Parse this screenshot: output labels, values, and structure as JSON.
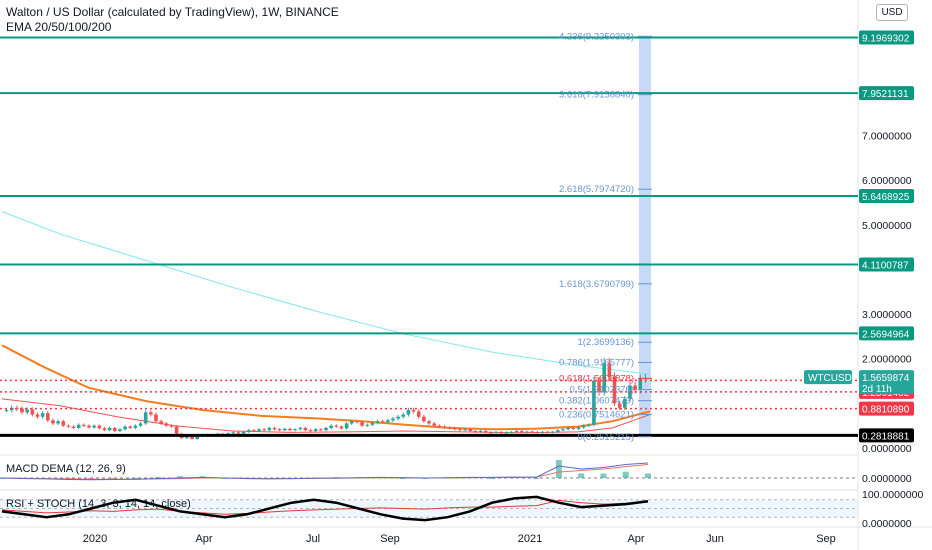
{
  "header": {
    "title": "Walton / US Dollar (calculated by TradingView), 1W, BINANCE",
    "indicator": "EMA 20/50/100/200",
    "currency_button": "USD"
  },
  "panes": {
    "macd_label": "MACD DEMA (12, 26, 9)",
    "rsi_label": "RSI + STOCH (14, 3, 3, 14, 14, close)"
  },
  "chart_data": {
    "type": "candlestick",
    "symbol": "WTCUSD",
    "last_price": "1.5659874",
    "countdown": "2d 11h",
    "x_labels": [
      "2020",
      "Apr",
      "Jul",
      "Sep",
      "2021",
      "Apr",
      "Jun",
      "Sep"
    ],
    "y_ticks": [
      "7.0000000",
      "6.0000000",
      "5.0000000",
      "3.0000000",
      "2.0000000",
      "0.0000000"
    ],
    "ylim": [
      0,
      9.5
    ],
    "horizontal_levels": [
      {
        "label": "9.1969302",
        "value": 9.1969302,
        "style": "solid",
        "color": "#089981"
      },
      {
        "label": "7.9521131",
        "value": 7.9521131,
        "style": "solid",
        "color": "#089981"
      },
      {
        "label": "5.6468925",
        "value": 5.6468925,
        "style": "solid",
        "color": "#089981"
      },
      {
        "label": "4.1100787",
        "value": 4.1100787,
        "style": "solid",
        "color": "#089981"
      },
      {
        "label": "2.5694964",
        "value": 2.5694964,
        "style": "solid",
        "color": "#089981"
      },
      {
        "label": "1.5147152",
        "value": 1.5147152,
        "style": "dotted",
        "color": "#f23645"
      },
      {
        "label": "1.2561462",
        "value": 1.2561462,
        "style": "dotted",
        "color": "#f23645"
      },
      {
        "label": "0.8810890",
        "value": 0.881089,
        "style": "dotted",
        "color": "#f23645"
      },
      {
        "label": "0.2818881",
        "value": 0.2818881,
        "style": "solid",
        "color": "#000000"
      }
    ],
    "fib_levels": [
      {
        "label": "4.236(9.2250303)",
        "value": 9.2250303
      },
      {
        "label": "3.618(7.9158840)",
        "value": 7.915884
      },
      {
        "label": "2.618(5.7974720)",
        "value": 5.797472
      },
      {
        "label": "1.618(3.6790799)",
        "value": 3.6790799
      },
      {
        "label": "1(2.3699136)",
        "value": 2.3699136
      },
      {
        "label": "0.786(1.9165777)",
        "value": 1.9165777
      },
      {
        "label": "0.618(1.5606878)",
        "value": 1.5606878
      },
      {
        "label": "0.5(1.3107376)",
        "value": 1.3107376
      },
      {
        "label": "0.382(1.0607473)",
        "value": 1.0607473
      },
      {
        "label": "0.236(0.7514621)",
        "value": 0.7514621
      },
      {
        "label": "0(0.2515215)",
        "value": 0.2515215
      }
    ],
    "colors": {
      "up": "#26a69a",
      "down": "#ef5350",
      "ema_cyan": "#7fe7f0",
      "ema_orange": "#f57c1f",
      "ema_red": "#ef5350",
      "fib": "#6a94d4",
      "fib_highlight": "#f23645",
      "shade": "#bcd3f5"
    },
    "ema_cyan": [
      [
        0,
        5.3
      ],
      [
        20,
        4.8
      ],
      [
        50,
        4.2
      ],
      [
        80,
        3.6
      ],
      [
        110,
        3.05
      ],
      [
        140,
        2.55
      ],
      [
        170,
        2.15
      ],
      [
        200,
        1.85
      ],
      [
        225,
        1.65
      ]
    ],
    "ema_orange": [
      [
        0,
        2.3
      ],
      [
        15,
        1.8
      ],
      [
        30,
        1.35
      ],
      [
        50,
        1.05
      ],
      [
        70,
        0.85
      ],
      [
        90,
        0.72
      ],
      [
        110,
        0.66
      ],
      [
        125,
        0.6
      ],
      [
        140,
        0.52
      ],
      [
        155,
        0.45
      ],
      [
        170,
        0.42
      ],
      [
        185,
        0.43
      ],
      [
        200,
        0.48
      ],
      [
        212,
        0.6
      ],
      [
        225,
        0.82
      ]
    ],
    "ema_red": [
      [
        0,
        1.1
      ],
      [
        20,
        0.95
      ],
      [
        40,
        0.7
      ],
      [
        60,
        0.5
      ],
      [
        80,
        0.38
      ],
      [
        100,
        0.35
      ],
      [
        120,
        0.36
      ],
      [
        140,
        0.38
      ],
      [
        160,
        0.36
      ],
      [
        180,
        0.34
      ],
      [
        200,
        0.36
      ],
      [
        212,
        0.45
      ],
      [
        225,
        0.75
      ]
    ],
    "candle_closes": [
      0.85,
      0.9,
      0.88,
      0.8,
      0.86,
      0.75,
      0.7,
      0.78,
      0.62,
      0.55,
      0.6,
      0.5,
      0.48,
      0.45,
      0.52,
      0.5,
      0.46,
      0.5,
      0.44,
      0.4,
      0.45,
      0.38,
      0.42,
      0.48,
      0.45,
      0.5,
      0.55,
      0.8,
      0.75,
      0.6,
      0.55,
      0.5,
      0.48,
      0.32,
      0.22,
      0.25,
      0.2,
      0.28,
      0.3,
      0.26,
      0.3,
      0.32,
      0.3,
      0.33,
      0.35,
      0.32,
      0.36,
      0.4,
      0.38,
      0.42,
      0.4,
      0.45,
      0.42,
      0.4,
      0.43,
      0.4,
      0.42,
      0.45,
      0.4,
      0.38,
      0.42,
      0.4,
      0.45,
      0.5,
      0.48,
      0.44,
      0.55,
      0.6,
      0.58,
      0.5,
      0.52,
      0.56,
      0.6,
      0.58,
      0.62,
      0.66,
      0.7,
      0.75,
      0.85,
      0.82,
      0.7,
      0.6,
      0.55,
      0.5,
      0.48,
      0.46,
      0.45,
      0.42,
      0.4,
      0.42,
      0.38,
      0.36,
      0.38,
      0.35,
      0.34,
      0.36,
      0.33,
      0.35,
      0.36,
      0.38,
      0.35,
      0.37,
      0.36,
      0.34,
      0.36,
      0.35,
      0.36,
      0.4,
      0.42,
      0.45,
      0.43,
      0.46,
      0.5,
      0.52,
      1.5,
      1.25,
      1.9,
      1.6,
      1.0,
      0.9,
      1.1,
      1.4,
      1.3,
      1.55,
      1.57
    ],
    "macd_line": [
      0.0,
      -0.02,
      -0.03,
      -0.05,
      -0.06,
      -0.05,
      -0.04,
      -0.02,
      0.0,
      0.02,
      0.0,
      -0.02,
      -0.03,
      -0.02,
      -0.01,
      0.0,
      0.01,
      0.02,
      0.01,
      0.0,
      0.01,
      0.02,
      0.02,
      0.03,
      0.03,
      0.4,
      0.3,
      0.35,
      0.45,
      0.5
    ],
    "macd_signal": [
      0.0,
      -0.01,
      -0.02,
      -0.03,
      -0.04,
      -0.04,
      -0.04,
      -0.03,
      -0.02,
      0.0,
      0.0,
      -0.01,
      -0.02,
      -0.02,
      -0.01,
      -0.01,
      0.0,
      0.01,
      0.01,
      0.0,
      0.0,
      0.01,
      0.02,
      0.02,
      0.03,
      0.2,
      0.25,
      0.3,
      0.38,
      0.45
    ],
    "rsi_ticks": [
      "100.0000000",
      "0.0000000"
    ],
    "rsi_line": [
      45,
      40,
      35,
      38,
      42,
      40,
      45,
      48,
      40,
      35,
      30,
      33,
      38,
      42,
      45,
      48,
      50,
      52,
      50,
      48,
      52,
      55,
      55,
      58,
      60,
      78,
      70,
      65,
      68,
      72
    ],
    "stoch_line": [
      40,
      30,
      20,
      30,
      50,
      70,
      80,
      60,
      40,
      30,
      20,
      30,
      50,
      70,
      80,
      70,
      50,
      30,
      15,
      10,
      20,
      40,
      70,
      85,
      90,
      70,
      55,
      60,
      65,
      75
    ]
  }
}
